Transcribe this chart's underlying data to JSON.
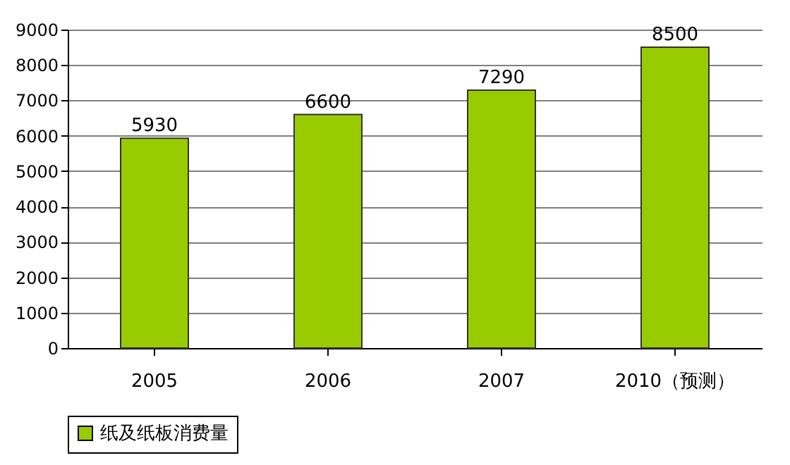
{
  "chart_data": {
    "type": "bar",
    "categories": [
      "2005",
      "2006",
      "2007",
      "2010（预测）"
    ],
    "series": [
      {
        "name": "纸及纸板消费量",
        "color": "#99cc00",
        "values": [
          5930,
          6600,
          7290,
          8500
        ]
      }
    ],
    "ylim": [
      0,
      9000
    ],
    "yticks": [
      0,
      1000,
      2000,
      3000,
      4000,
      5000,
      6000,
      7000,
      8000,
      9000
    ],
    "grid": "y",
    "legend": "bottom",
    "data_labels": true
  }
}
